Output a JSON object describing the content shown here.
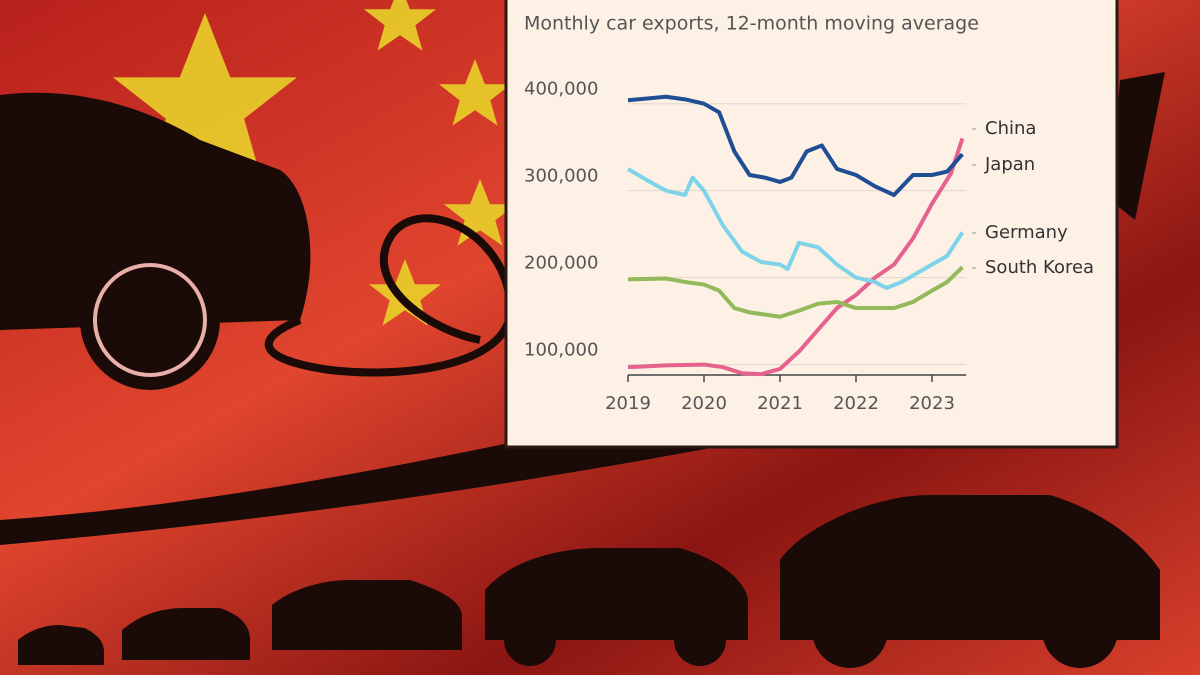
{
  "chart_data": {
    "type": "line",
    "title": "Monthly car exports, 12-month moving average",
    "xlim": [
      2019,
      2023.45
    ],
    "xticks": [
      2019,
      2020,
      2021,
      2022,
      2023
    ],
    "ylim": [
      88000,
      410000
    ],
    "yticks": [
      {
        "value": 100000,
        "label": "100,000"
      },
      {
        "value": 200000,
        "label": "200,000"
      },
      {
        "value": 300000,
        "label": "300,000"
      },
      {
        "value": 400000,
        "label": "400,000"
      }
    ],
    "grid": true,
    "series": [
      {
        "name": "China",
        "color": "#e5628f",
        "x": [
          2019,
          2019.5,
          2020,
          2020.25,
          2020.5,
          2020.75,
          2021,
          2021.25,
          2021.5,
          2021.75,
          2022,
          2022.25,
          2022.5,
          2022.75,
          2023,
          2023.25,
          2023.4
        ],
        "values": [
          97000,
          99000,
          100000,
          97000,
          90000,
          89000,
          95000,
          115000,
          140000,
          165000,
          180000,
          200000,
          215000,
          245000,
          285000,
          320000,
          360000
        ]
      },
      {
        "name": "Japan",
        "color": "#1f4e94",
        "x": [
          2019,
          2019.5,
          2019.75,
          2020,
          2020.2,
          2020.4,
          2020.6,
          2020.8,
          2021,
          2021.15,
          2021.35,
          2021.55,
          2021.75,
          2022,
          2022.25,
          2022.5,
          2022.75,
          2023,
          2023.2,
          2023.4
        ],
        "values": [
          404000,
          408000,
          405000,
          400000,
          390000,
          345000,
          318000,
          315000,
          310000,
          315000,
          345000,
          352000,
          325000,
          318000,
          305000,
          295000,
          318000,
          318000,
          322000,
          342000
        ]
      },
      {
        "name": "Germany",
        "color": "#7fd3e8",
        "x": [
          2019,
          2019.25,
          2019.5,
          2019.75,
          2019.85,
          2020,
          2020.25,
          2020.5,
          2020.75,
          2021,
          2021.1,
          2021.25,
          2021.5,
          2021.75,
          2022,
          2022.25,
          2022.4,
          2022.6,
          2022.9,
          2023.2,
          2023.4
        ],
        "values": [
          325000,
          312000,
          300000,
          295000,
          315000,
          300000,
          260000,
          230000,
          218000,
          215000,
          210000,
          240000,
          235000,
          215000,
          200000,
          195000,
          188000,
          195000,
          210000,
          225000,
          252000
        ]
      },
      {
        "name": "South Korea",
        "color": "#93b95a",
        "x": [
          2019,
          2019.5,
          2019.75,
          2020,
          2020.2,
          2020.4,
          2020.6,
          2021,
          2021.25,
          2021.5,
          2021.75,
          2022,
          2022.5,
          2022.75,
          2023,
          2023.2,
          2023.4
        ],
        "values": [
          198000,
          199000,
          195000,
          192000,
          185000,
          165000,
          160000,
          155000,
          162000,
          170000,
          172000,
          165000,
          165000,
          172000,
          185000,
          195000,
          212000
        ]
      }
    ]
  }
}
